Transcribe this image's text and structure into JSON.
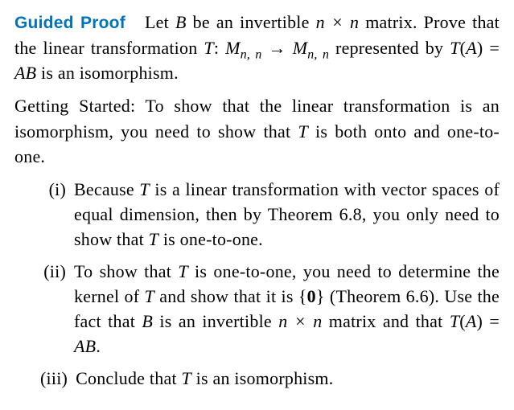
{
  "heading": "Guided Proof",
  "intro_part1": "Let ",
  "intro_B": "B",
  "intro_part2": " be an invertible ",
  "intro_nxn": "n × n",
  "intro_part3": " matrix. Prove that the linear transformation ",
  "intro_T": "T",
  "intro_colon": ": ",
  "intro_M1": "M",
  "intro_sub": "n, n",
  "intro_arrow": " → ",
  "intro_M2": "M",
  "intro_part4": " represented by ",
  "intro_TA": "T",
  "intro_paren": "(",
  "intro_A": "A",
  "intro_paren2": ") = ",
  "intro_AB": "AB",
  "intro_end": " is an isomorphism.",
  "getting_started_label": "Getting Started:",
  "getting_started_body1": "  To show that the linear transformation is an isomorphism, you need to show that ",
  "getting_started_T": "T",
  "getting_started_body2": " is both onto and one-to-one.",
  "items": [
    {
      "marker": "(i)",
      "p1": "Because ",
      "T1": "T",
      "p2": " is a linear transformation with vector spaces of equal dimension, then by Theorem 6.8, you only need to show that ",
      "T2": "T",
      "p3": " is one-to-one."
    },
    {
      "marker": "(ii)",
      "p1": "To show that ",
      "T1": "T",
      "p2": " is one-to-one, you need to determine the kernel of ",
      "T2": "T",
      "p3": " and show that it is {",
      "zero": "0",
      "p4": "} (Theorem 6.6). Use the fact that ",
      "B": "B",
      "p5": " is an invertible ",
      "nxn": "n × n",
      "p6": " matrix and that ",
      "T3": "T",
      "p7": "(",
      "A": "A",
      "p8": ") = ",
      "AB": "AB",
      "p9": "."
    },
    {
      "marker": "(iii)",
      "p1": "Conclude that ",
      "T1": "T",
      "p2": " is an isomorphism."
    }
  ]
}
